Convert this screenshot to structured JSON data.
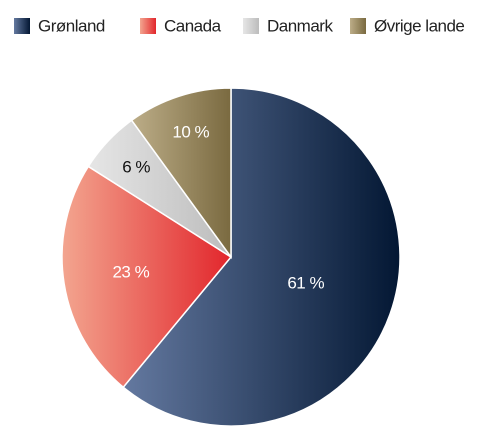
{
  "chart_data": {
    "type": "pie",
    "categories": [
      "Grønland",
      "Canada",
      "Danmark",
      "Øvrige lande"
    ],
    "values": [
      61,
      23,
      6,
      10
    ],
    "value_labels": [
      "61 %",
      "23 %",
      "6 %",
      "10 %"
    ],
    "gradients": [
      [
        "#6479a0",
        "#031733"
      ],
      [
        "#f3a58f",
        "#e2262c"
      ],
      [
        "#e6e6e6",
        "#bcbcbc"
      ],
      [
        "#bcad88",
        "#7a6a40"
      ]
    ],
    "label_colors": [
      "#ffffff",
      "#ffffff",
      "#111111",
      "#ffffff"
    ],
    "legend": "top"
  }
}
